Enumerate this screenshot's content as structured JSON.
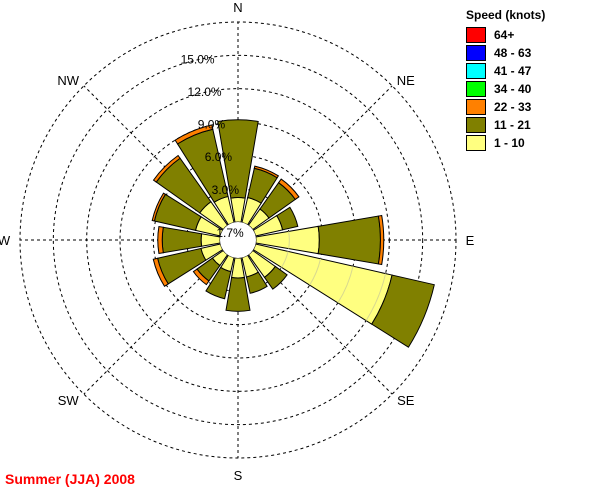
{
  "chart_data": {
    "type": "wind-rose",
    "directions": [
      "N",
      "NNE",
      "NE",
      "ENE",
      "E",
      "ESE",
      "SE",
      "SSE",
      "S",
      "SSW",
      "SW",
      "WSW",
      "W",
      "WNW",
      "NW",
      "NNW"
    ],
    "compass_labels": [
      {
        "text": "N",
        "angle": 0
      },
      {
        "text": "NE",
        "angle": 45
      },
      {
        "text": "E",
        "angle": 90
      },
      {
        "text": "SE",
        "angle": 135
      },
      {
        "text": "S",
        "angle": 180
      },
      {
        "text": "SW",
        "angle": 225
      },
      {
        "text": "W",
        "angle": 270
      },
      {
        "text": "NW",
        "angle": 315
      }
    ],
    "calm_label": "1.7%",
    "rings": [
      {
        "value": 3.0,
        "label": "3.0%"
      },
      {
        "value": 6.0,
        "label": "6.0%"
      },
      {
        "value": 9.0,
        "label": "9.0%"
      },
      {
        "value": 12.0,
        "label": "12.0%"
      },
      {
        "value": 15.0,
        "label": "15.0%"
      }
    ],
    "max_ring": 18.0,
    "legend_title": "Speed (knots)",
    "bins": [
      {
        "label": "64+",
        "color": "#ff0000"
      },
      {
        "label": "48 - 63",
        "color": "#0000ff"
      },
      {
        "label": "41 - 47",
        "color": "#00ffff"
      },
      {
        "label": "34 - 40",
        "color": "#00ff00"
      },
      {
        "label": "22 - 33",
        "color": "#ff8000"
      },
      {
        "label": "11 - 21",
        "color": "#808000"
      },
      {
        "label": "1 - 10",
        "color": "#ffff80"
      }
    ],
    "segments": [
      {
        "dir": "N",
        "values": [
          2.2,
          7.0,
          0.0
        ]
      },
      {
        "dir": "NNE",
        "values": [
          2.3,
          2.7,
          0.2
        ]
      },
      {
        "dir": "NE",
        "values": [
          1.8,
          2.9,
          0.4
        ]
      },
      {
        "dir": "ENE",
        "values": [
          2.5,
          1.4,
          0.0
        ]
      },
      {
        "dir": "E",
        "values": [
          5.7,
          5.5,
          0.3
        ]
      },
      {
        "dir": "ESE",
        "values": [
          12.6,
          3.9,
          0.0
        ]
      },
      {
        "dir": "SE",
        "values": [
          2.5,
          1.3,
          0.0
        ]
      },
      {
        "dir": "SSE",
        "values": [
          1.8,
          1.5,
          0.0
        ]
      },
      {
        "dir": "S",
        "values": [
          1.8,
          3.0,
          0.0
        ]
      },
      {
        "dir": "SSW",
        "values": [
          1.3,
          2.5,
          0.0
        ]
      },
      {
        "dir": "SW",
        "values": [
          1.2,
          1.7,
          0.4
        ]
      },
      {
        "dir": "WSW",
        "values": [
          1.8,
          4.0,
          0.4
        ]
      },
      {
        "dir": "W",
        "values": [
          1.7,
          3.5,
          0.4
        ]
      },
      {
        "dir": "WNW",
        "values": [
          2.3,
          3.8,
          0.2
        ]
      },
      {
        "dir": "NW",
        "values": [
          2.6,
          4.8,
          0.3
        ]
      },
      {
        "dir": "NNW",
        "values": [
          2.4,
          6.2,
          0.4
        ]
      }
    ]
  },
  "caption": "Summer (JJA) 2008"
}
